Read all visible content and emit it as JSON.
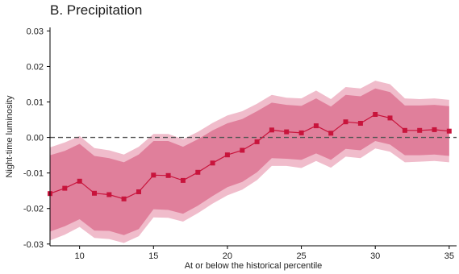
{
  "chart_data": {
    "type": "line",
    "title": "B. Precipitation",
    "xlabel": "At or below the historical percentile",
    "ylabel": "Night-time luminosity",
    "xlim": [
      8,
      35.5
    ],
    "ylim": [
      -0.0305,
      0.031
    ],
    "x_ticks": [
      10,
      15,
      20,
      25,
      30,
      35
    ],
    "y_ticks": [
      -0.03,
      -0.02,
      -0.01,
      0.0,
      0.01,
      0.02,
      0.03
    ],
    "x_tick_labels": [
      "10",
      "15",
      "20",
      "25",
      "30",
      "35"
    ],
    "y_tick_labels": [
      "-0.03",
      "-0.02",
      "-0.01",
      "0.00",
      "0.01",
      "0.02",
      "0.03"
    ],
    "reference_line": {
      "y": 0.0,
      "style": "dashed",
      "color": "#555555"
    },
    "grid": false,
    "colors": {
      "line": "#c8143c",
      "inner_band": "#e07f9b",
      "outer_band": "#f0bccb"
    },
    "series": [
      {
        "x": [
          8,
          9,
          10,
          11,
          12,
          13,
          14,
          15,
          16,
          17,
          18,
          19,
          20,
          21,
          22,
          23,
          24,
          25,
          26,
          27,
          28,
          29,
          30,
          31,
          32,
          33,
          34,
          35
        ],
        "values": [
          -0.0158,
          -0.0143,
          -0.0123,
          -0.0157,
          -0.0161,
          -0.0173,
          -0.0153,
          -0.0106,
          -0.0107,
          -0.0121,
          -0.0098,
          -0.0072,
          -0.0049,
          -0.0036,
          -0.0012,
          0.0021,
          0.0016,
          0.0013,
          0.0033,
          0.0012,
          0.0044,
          0.004,
          0.0065,
          0.0055,
          0.002,
          0.002,
          0.0022,
          0.0018
        ],
        "ci_inner_lower": [
          -0.0265,
          -0.025,
          -0.023,
          -0.0262,
          -0.0263,
          -0.0275,
          -0.0258,
          -0.0202,
          -0.0204,
          -0.0215,
          -0.0192,
          -0.0165,
          -0.014,
          -0.0125,
          -0.0098,
          -0.0058,
          -0.006,
          -0.0063,
          -0.0045,
          -0.0063,
          -0.0032,
          -0.0036,
          -0.001,
          -0.002,
          -0.005,
          -0.005,
          -0.0048,
          -0.0052
        ],
        "ci_inner_upper": [
          -0.005,
          -0.0038,
          -0.0018,
          -0.0052,
          -0.0058,
          -0.007,
          -0.0048,
          -0.001,
          -0.001,
          -0.0026,
          -0.0005,
          0.002,
          0.004,
          0.0052,
          0.0074,
          0.0098,
          0.0092,
          0.0089,
          0.011,
          0.0087,
          0.012,
          0.0116,
          0.0138,
          0.0128,
          0.009,
          0.009,
          0.0092,
          0.0088
        ],
        "ci_outer_lower": [
          -0.029,
          -0.0274,
          -0.0252,
          -0.0283,
          -0.0286,
          -0.0297,
          -0.0278,
          -0.0225,
          -0.0226,
          -0.0237,
          -0.0213,
          -0.0186,
          -0.0163,
          -0.0147,
          -0.012,
          -0.008,
          -0.008,
          -0.0086,
          -0.0066,
          -0.0085,
          -0.0054,
          -0.0058,
          -0.0031,
          -0.004,
          -0.007,
          -0.0068,
          -0.0066,
          -0.007
        ],
        "ci_outer_upper": [
          -0.0028,
          -0.0014,
          0.0004,
          -0.003,
          -0.0036,
          -0.0048,
          -0.0026,
          0.001,
          0.001,
          -0.0005,
          0.0016,
          0.0041,
          0.0062,
          0.0074,
          0.0095,
          0.012,
          0.0112,
          0.011,
          0.0132,
          0.0108,
          0.0142,
          0.0138,
          0.016,
          0.015,
          0.011,
          0.0108,
          0.011,
          0.0106
        ]
      }
    ]
  }
}
